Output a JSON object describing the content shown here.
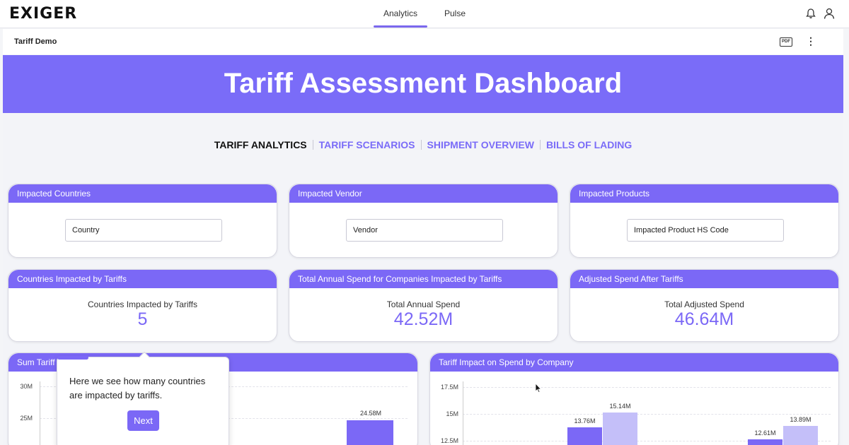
{
  "app": {
    "logo_text": "EXIGER",
    "nav_tabs": [
      {
        "label": "Analytics",
        "active": true
      },
      {
        "label": "Pulse",
        "active": false
      }
    ]
  },
  "subheader": {
    "title": "Tariff Demo",
    "pdf_label": "PDF",
    "more_label": "⋮"
  },
  "banner": {
    "title": "Tariff Assessment Dashboard",
    "color": "#7a6cf8"
  },
  "tabs": [
    {
      "label": "TARIFF ANALYTICS",
      "active": true
    },
    {
      "label": "TARIFF SCENARIOS",
      "active": false
    },
    {
      "label": "SHIPMENT OVERVIEW",
      "active": false
    },
    {
      "label": "BILLS OF LADING",
      "active": false
    }
  ],
  "filters": [
    {
      "header": "Impacted Countries",
      "placeholder": "Country"
    },
    {
      "header": "Impacted Vendor",
      "placeholder": "Vendor"
    },
    {
      "header": "Impacted Products",
      "placeholder": "Impacted Product HS Code"
    }
  ],
  "kpis": [
    {
      "header": "Countries Impacted by Tariffs",
      "label": "Countries Impacted by Tariffs",
      "value": "5"
    },
    {
      "header": "Total Annual Spend for Companies Impacted by Tariffs",
      "label": "Total Annual Spend",
      "value": "42.52M"
    },
    {
      "header": "Adjusted Spend After Tariffs",
      "label": "Total Adjusted Spend",
      "value": "46.64M"
    }
  ],
  "charts": {
    "left": {
      "header": "Sum Tariff"
    },
    "right": {
      "header": "Tariff Impact on Spend by Company"
    }
  },
  "chart_data": [
    {
      "type": "bar",
      "title": "Sum Tariff",
      "y_ticks": [
        "30M",
        "25M"
      ],
      "series": [
        {
          "values": [
            24.58
          ],
          "labels": [
            "24.58M"
          ]
        }
      ]
    },
    {
      "type": "bar",
      "title": "Tariff Impact on Spend by Company",
      "y_ticks": [
        "17.5M",
        "15M",
        "12.5M"
      ],
      "ylim": [
        12.5,
        17.5
      ],
      "series": [
        {
          "values": [
            13.76,
            12.61
          ],
          "labels": [
            "13.76M",
            "12.61M"
          ],
          "color": "#7b68f6"
        },
        {
          "values": [
            15.14,
            13.89
          ],
          "labels": [
            "15.14M",
            "13.89M"
          ],
          "color": "#c4bff9"
        }
      ]
    }
  ],
  "tooltip": {
    "text": "Here we see how many countries are impacted by tariffs.",
    "button": "Next"
  },
  "colors": {
    "accent": "#7b68f6",
    "accent_light": "#c4bff9"
  }
}
